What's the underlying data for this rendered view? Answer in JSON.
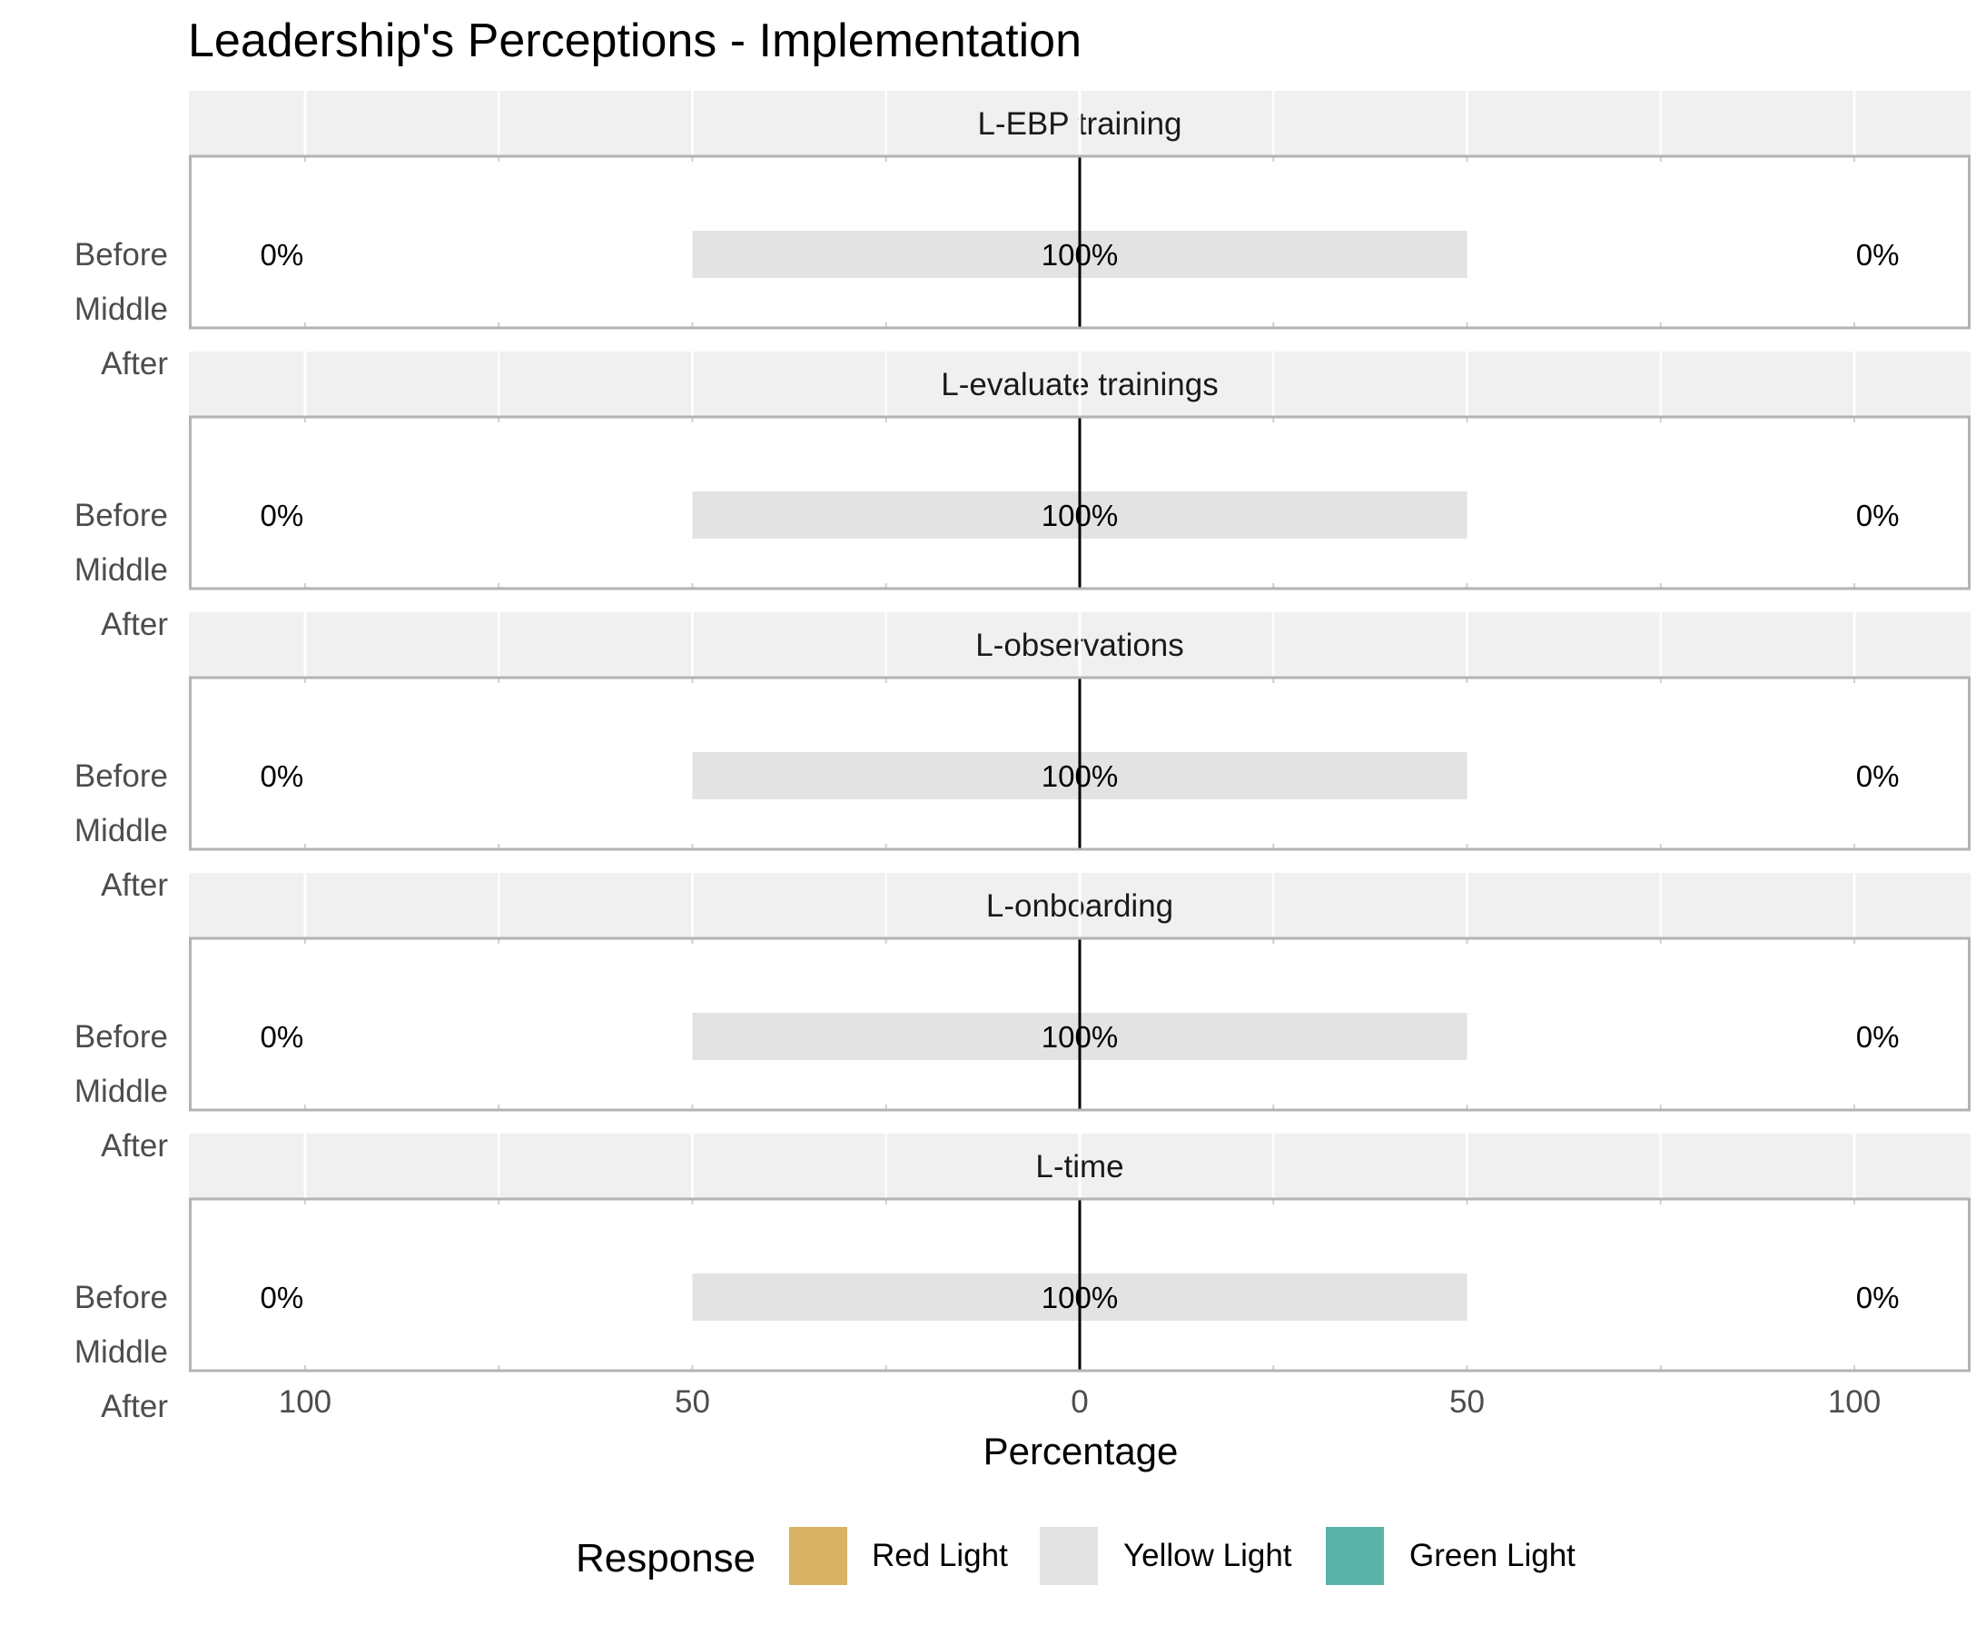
{
  "chart_data": {
    "type": "bar",
    "subtype": "diverging-stacked-bar",
    "title": "Leadership's Perceptions - Implementation",
    "xlabel": "Percentage",
    "ylabel": "",
    "xlim": [
      -115,
      115
    ],
    "x_ticks": [
      -100,
      -50,
      0,
      50,
      100
    ],
    "x_tick_labels": [
      "100",
      "50",
      "0",
      "50",
      "100"
    ],
    "grid": true,
    "categories": [
      "Before",
      "Middle",
      "After"
    ],
    "legend": {
      "title": "Response",
      "position": "bottom",
      "entries": [
        {
          "label": "Red Light",
          "color": "#d9b365"
        },
        {
          "label": "Yellow Light",
          "color": "#e3e3e3"
        },
        {
          "label": "Green Light",
          "color": "#5bb3a7"
        }
      ]
    },
    "panels": [
      {
        "facet": "L-EBP training",
        "rows": [
          {
            "period": "Before",
            "red": 0,
            "yellow": 100,
            "green": 0,
            "left_label": "0%",
            "center_label": "100%",
            "right_label": "0%"
          },
          {
            "period": "Middle"
          },
          {
            "period": "After"
          }
        ]
      },
      {
        "facet": "L-evaluate trainings",
        "rows": [
          {
            "period": "Before",
            "red": 0,
            "yellow": 100,
            "green": 0,
            "left_label": "0%",
            "center_label": "100%",
            "right_label": "0%"
          },
          {
            "period": "Middle"
          },
          {
            "period": "After"
          }
        ]
      },
      {
        "facet": "L-observations",
        "rows": [
          {
            "period": "Before",
            "red": 0,
            "yellow": 100,
            "green": 0,
            "left_label": "0%",
            "center_label": "100%",
            "right_label": "0%"
          },
          {
            "period": "Middle"
          },
          {
            "period": "After"
          }
        ]
      },
      {
        "facet": "L-onboarding",
        "rows": [
          {
            "period": "Before",
            "red": 0,
            "yellow": 100,
            "green": 0,
            "left_label": "0%",
            "center_label": "100%",
            "right_label": "0%"
          },
          {
            "period": "Middle"
          },
          {
            "period": "After"
          }
        ]
      },
      {
        "facet": "L-time",
        "rows": [
          {
            "period": "Before",
            "red": 0,
            "yellow": 100,
            "green": 0,
            "left_label": "0%",
            "center_label": "100%",
            "right_label": "0%"
          },
          {
            "period": "Middle"
          },
          {
            "period": "After"
          }
        ]
      }
    ]
  }
}
